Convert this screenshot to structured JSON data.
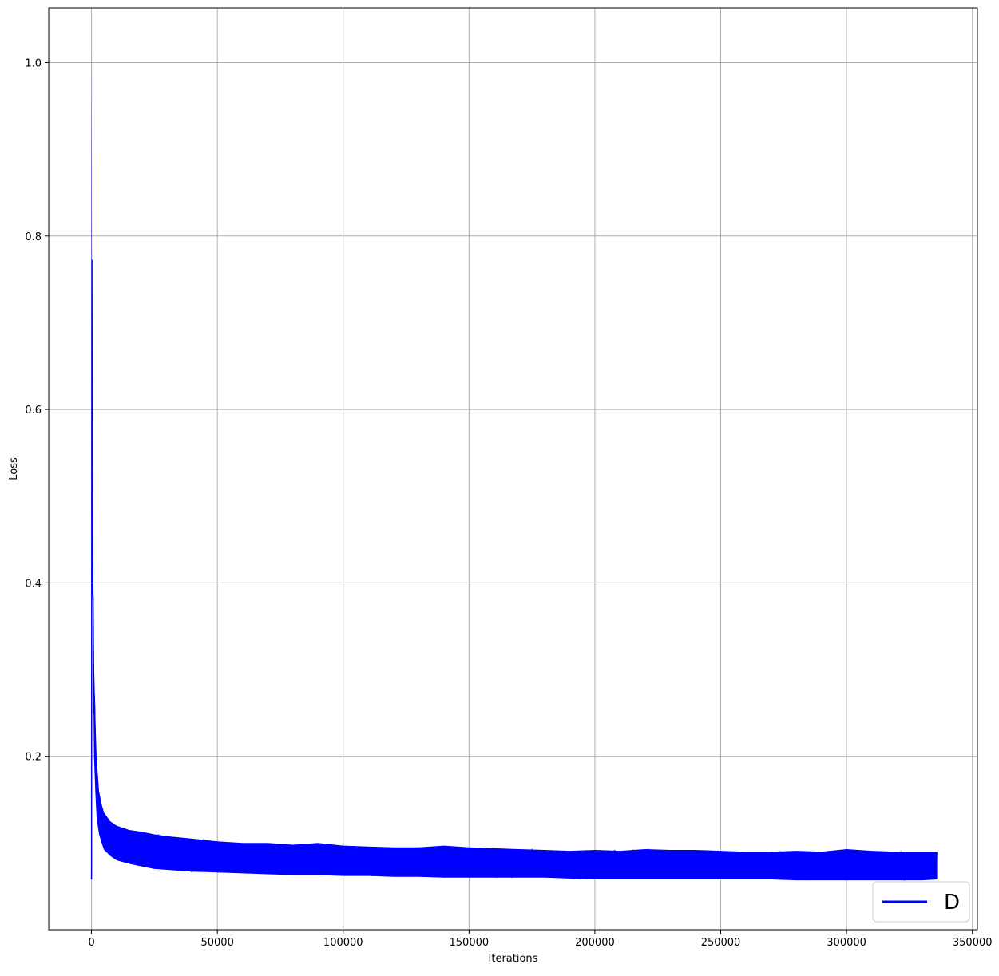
{
  "chart_data": {
    "type": "line",
    "title": "",
    "xlabel": "Iterations",
    "ylabel": "Loss",
    "xlim": [
      -17000,
      352000
    ],
    "ylim": [
      0.0,
      1.063
    ],
    "x_ticks": [
      0,
      50000,
      100000,
      150000,
      200000,
      250000,
      300000,
      350000
    ],
    "x_tick_labels": [
      "0",
      "50000",
      "100000",
      "150000",
      "200000",
      "250000",
      "300000",
      "350000"
    ],
    "y_ticks": [
      0.2,
      0.4,
      0.6,
      0.8,
      1.0
    ],
    "y_tick_labels": [
      "0.2",
      "0.4",
      "0.6",
      "0.8",
      "1.0"
    ],
    "grid": true,
    "legend": {
      "position": "bottom-right",
      "entries": [
        "D"
      ]
    },
    "series": [
      {
        "name": "D",
        "color": "#0000ff",
        "x": [
          0,
          100,
          200,
          300,
          500,
          700,
          1000,
          1500,
          2000,
          3000,
          4000,
          5000,
          7500,
          10000,
          15000,
          20000,
          25000,
          30000,
          40000,
          50000,
          60000,
          70000,
          80000,
          90000,
          100000,
          110000,
          120000,
          130000,
          140000,
          150000,
          160000,
          170000,
          180000,
          190000,
          200000,
          210000,
          220000,
          230000,
          240000,
          250000,
          260000,
          270000,
          280000,
          290000,
          300000,
          310000,
          320000,
          330000,
          336000
        ],
        "y_high": [
          1.015,
          0.9,
          0.72,
          0.62,
          0.48,
          0.38,
          0.31,
          0.25,
          0.2,
          0.16,
          0.145,
          0.135,
          0.125,
          0.12,
          0.115,
          0.113,
          0.11,
          0.108,
          0.105,
          0.102,
          0.1,
          0.1,
          0.098,
          0.1,
          0.097,
          0.096,
          0.095,
          0.095,
          0.097,
          0.095,
          0.094,
          0.093,
          0.092,
          0.091,
          0.092,
          0.091,
          0.093,
          0.092,
          0.092,
          0.091,
          0.09,
          0.09,
          0.091,
          0.09,
          0.093,
          0.091,
          0.09,
          0.09,
          0.09
        ],
        "y_low": [
          0.55,
          0.55,
          0.5,
          0.45,
          0.35,
          0.28,
          0.2,
          0.16,
          0.13,
          0.11,
          0.1,
          0.092,
          0.085,
          0.08,
          0.076,
          0.073,
          0.07,
          0.069,
          0.067,
          0.066,
          0.065,
          0.064,
          0.063,
          0.063,
          0.062,
          0.062,
          0.061,
          0.061,
          0.06,
          0.06,
          0.06,
          0.06,
          0.06,
          0.059,
          0.058,
          0.058,
          0.058,
          0.058,
          0.058,
          0.058,
          0.058,
          0.058,
          0.057,
          0.057,
          0.057,
          0.057,
          0.057,
          0.057,
          0.058
        ]
      }
    ]
  }
}
